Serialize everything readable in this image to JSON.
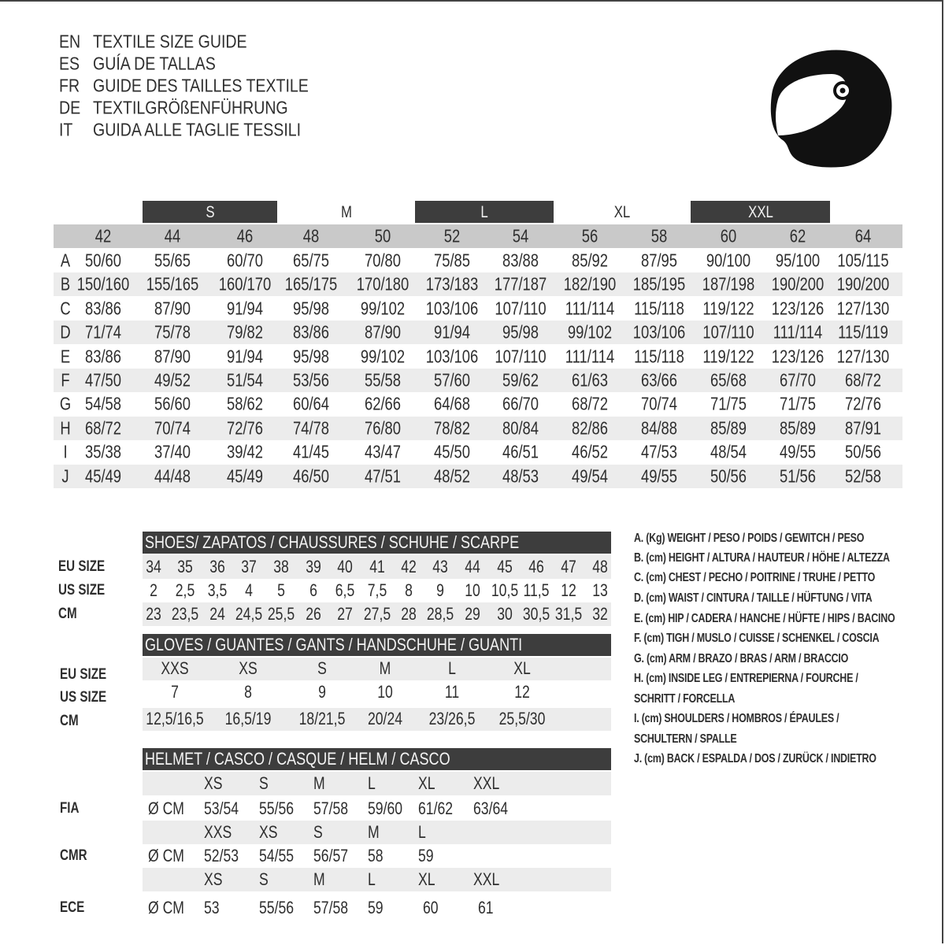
{
  "header": {
    "lines": [
      {
        "code": "EN",
        "text": "TEXTILE SIZE GUIDE"
      },
      {
        "code": "ES",
        "text": "GUÍA DE TALLAS"
      },
      {
        "code": "FR",
        "text": "GUIDE DES TAILLES TEXTILE"
      },
      {
        "code": "DE",
        "text": "TEXTILGRÖßENFÜHRUNG"
      },
      {
        "code": "IT",
        "text": "GUIDA ALLE TAGLIE TESSILI"
      }
    ],
    "icon": "helmet-icon"
  },
  "colors": {
    "dark": "#3d3d3d",
    "header_gray": "#c9c9c9",
    "row_gray": "#ececec"
  },
  "textile": {
    "size_groups": [
      {
        "label": "S",
        "dark": true
      },
      {
        "label": "M",
        "dark": false
      },
      {
        "label": "L",
        "dark": true
      },
      {
        "label": "XL",
        "dark": false
      },
      {
        "label": "XXL",
        "dark": true
      }
    ],
    "columns": [
      "42",
      "44",
      "46",
      "48",
      "50",
      "52",
      "54",
      "56",
      "58",
      "60",
      "62",
      "64"
    ],
    "rows": [
      {
        "label": "A",
        "values": [
          "50/60",
          "55/65",
          "60/70",
          "65/75",
          "70/80",
          "75/85",
          "83/88",
          "85/92",
          "87/95",
          "90/100",
          "95/100",
          "105/115"
        ]
      },
      {
        "label": "B",
        "values": [
          "150/160",
          "155/165",
          "160/170",
          "165/175",
          "170/180",
          "173/183",
          "177/187",
          "182/190",
          "185/195",
          "187/198",
          "190/200",
          "190/200"
        ]
      },
      {
        "label": "C",
        "values": [
          "83/86",
          "87/90",
          "91/94",
          "95/98",
          "99/102",
          "103/106",
          "107/110",
          "111/114",
          "115/118",
          "119/122",
          "123/126",
          "127/130"
        ]
      },
      {
        "label": "D",
        "values": [
          "71/74",
          "75/78",
          "79/82",
          "83/86",
          "87/90",
          "91/94",
          "95/98",
          "99/102",
          "103/106",
          "107/110",
          "111/114",
          "115/119"
        ]
      },
      {
        "label": "E",
        "values": [
          "83/86",
          "87/90",
          "91/94",
          "95/98",
          "99/102",
          "103/106",
          "107/110",
          "111/114",
          "115/118",
          "119/122",
          "123/126",
          "127/130"
        ]
      },
      {
        "label": "F",
        "values": [
          "47/50",
          "49/52",
          "51/54",
          "53/56",
          "55/58",
          "57/60",
          "59/62",
          "61/63",
          "63/66",
          "65/68",
          "67/70",
          "68/72"
        ]
      },
      {
        "label": "G",
        "values": [
          "54/58",
          "56/60",
          "58/62",
          "60/64",
          "62/66",
          "64/68",
          "66/70",
          "68/72",
          "70/74",
          "71/75",
          "71/75",
          "72/76"
        ]
      },
      {
        "label": "H",
        "values": [
          "68/72",
          "70/74",
          "72/76",
          "74/78",
          "76/80",
          "78/82",
          "80/84",
          "82/86",
          "84/88",
          "85/89",
          "85/89",
          "87/91"
        ]
      },
      {
        "label": "I",
        "values": [
          "35/38",
          "37/40",
          "39/42",
          "41/45",
          "43/47",
          "45/50",
          "46/51",
          "46/52",
          "47/53",
          "48/54",
          "49/55",
          "50/56"
        ]
      },
      {
        "label": "J",
        "values": [
          "45/49",
          "44/48",
          "45/49",
          "46/50",
          "47/51",
          "48/52",
          "48/53",
          "49/54",
          "49/55",
          "50/56",
          "51/56",
          "52/58"
        ]
      }
    ]
  },
  "shoes": {
    "title": "SHOES/ ZAPATOS / CHAUSSURES / SCHUHE / SCARPE",
    "rows": [
      {
        "label": "EU SIZE",
        "values": [
          "34",
          "35",
          "36",
          "37",
          "38",
          "39",
          "40",
          "41",
          "42",
          "43",
          "44",
          "45",
          "46",
          "47",
          "48"
        ]
      },
      {
        "label": "US SIZE",
        "values": [
          "2",
          "2,5",
          "3,5",
          "4",
          "5",
          "6",
          "6,5",
          "7,5",
          "8",
          "9",
          "10",
          "10,5",
          "11,5",
          "12",
          "13"
        ]
      },
      {
        "label": "CM",
        "values": [
          "23",
          "23,5",
          "24",
          "24,5",
          "25,5",
          "26",
          "27",
          "27,5",
          "28",
          "28,5",
          "29",
          "30",
          "30,5",
          "31,5",
          "32"
        ]
      }
    ]
  },
  "gloves": {
    "title": "GLOVES / GUANTES / GANTS / HANDSCHUHE / GUANTI",
    "rows": [
      {
        "label": "EU SIZE",
        "values": [
          "XXS",
          "XS",
          "S",
          "M",
          "L",
          "XL"
        ]
      },
      {
        "label": "US SIZE",
        "values": [
          "7",
          "8",
          "9",
          "10",
          "11",
          "12"
        ]
      },
      {
        "label": "CM",
        "values": [
          "12,5/16,5",
          "16,5/19",
          "18/21,5",
          "20/24",
          "23/26,5",
          "25,5/30"
        ]
      }
    ]
  },
  "helmet": {
    "title": "HELMET / CASCO / CASQUE / HELM / CASCO",
    "unit": "Ø CM",
    "standards": [
      {
        "label": "FIA",
        "sizes": [
          "XS",
          "S",
          "M",
          "L",
          "XL",
          "XXL"
        ],
        "values": [
          "53/54",
          "55/56",
          "57/58",
          "59/60",
          "61/62",
          "63/64"
        ]
      },
      {
        "label": "CMR",
        "sizes": [
          "XXS",
          "XS",
          "S",
          "M",
          "L"
        ],
        "values": [
          "52/53",
          "54/55",
          "56/57",
          "58",
          "59"
        ]
      },
      {
        "label": "ECE",
        "sizes": [
          "XS",
          "S",
          "M",
          "L",
          "XL",
          "XXL"
        ],
        "values": [
          "53",
          "55/56",
          "57/58",
          "59",
          "60",
          "61"
        ]
      }
    ]
  },
  "legend": [
    "A. (Kg) WEIGHT / PESO / POIDS / GEWITCH / PESO",
    "B. (cm) HEIGHT / ALTURA / HAUTEUR / HÖHE / ALTEZZA",
    "C. (cm) CHEST / PECHO / POITRINE / TRUHE / PETTO",
    "D. (cm) WAIST / CINTURA / TAILLE / HÜFTUNG / VITA",
    "E. (cm) HIP / CADERA / HANCHE / HÜFTE / HIPS /  BACINO",
    "F.  (cm) TIGH / MUSLO / CUISSE / SCHENKEL / COSCIA",
    "G. (cm) ARM  / BRAZO / BRAS / ARM / BRACCIO",
    "H. (cm) INSIDE LEG / ENTREPIERNA / FOURCHE /",
    "SCHRITT / FORCELLA",
    "I.  (cm) SHOULDERS / HOMBROS / ÉPAULES /",
    "SCHULTERN / SPALLE",
    "J. (cm) BACK / ESPALDA / DOS / ZURÜCK / INDIETRO"
  ]
}
